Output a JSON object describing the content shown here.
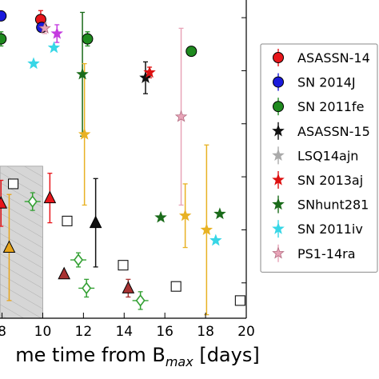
{
  "chart_data": {
    "type": "scatter",
    "xlabel": "me time from B",
    "xlabel_subscript": "max",
    "xlabel_suffix": " [days]",
    "xlim": [
      7.9,
      20
    ],
    "xticks": [
      8,
      10,
      12,
      14,
      16,
      18,
      20
    ],
    "xtick_labels": [
      "8",
      "10",
      "12",
      "14",
      "16",
      "18",
      "20"
    ],
    "grid": false,
    "shaded_region": {
      "x": [
        7.9,
        10
      ],
      "style": "gray hatched"
    },
    "legend_position": "right",
    "series": [
      {
        "name": "ASASSN-14",
        "marker": "circle",
        "color": "#e8161b",
        "points": [
          {
            "x": 9.9,
            "y": 8.9,
            "err": 0.5
          }
        ]
      },
      {
        "name": "SN 2014J",
        "marker": "circle",
        "color": "#1a1adc",
        "points": [
          {
            "x": 7.95,
            "y": 9.1
          },
          {
            "x": 9.95,
            "y": 8.45
          }
        ]
      },
      {
        "name": "SN 2011fe",
        "marker": "circle",
        "color": "#1f8a1f",
        "points": [
          {
            "x": 7.95,
            "y": 7.8,
            "err": 0.4
          },
          {
            "x": 12.2,
            "y": 7.8,
            "err": 0.4
          },
          {
            "x": 17.3,
            "y": 7.1
          }
        ]
      },
      {
        "name": "ASASSN-15",
        "marker": "star",
        "color": "#111111",
        "points": [
          {
            "x": 15.05,
            "y": 5.6,
            "err": 0.9
          }
        ]
      },
      {
        "name": "LSQ14ajn",
        "marker": "star",
        "color": "#aaaaaa",
        "points": []
      },
      {
        "name": "SN 2013aj",
        "marker": "star",
        "color": "#dd1111",
        "points": [
          {
            "x": 15.25,
            "y": 5.9,
            "err": 0.3
          }
        ]
      },
      {
        "name": "SNhunt281",
        "marker": "star",
        "color": "#1a6b1a",
        "points": [
          {
            "x": 11.95,
            "y": 5.8,
            "err": 3.5
          },
          {
            "x": 15.8,
            "y": -2.3
          },
          {
            "x": 18.7,
            "y": -2.1
          }
        ]
      },
      {
        "name": "SN 2011iv",
        "marker": "star",
        "color": "#37d6e6",
        "points": [
          {
            "x": 9.55,
            "y": 6.4
          },
          {
            "x": 10.55,
            "y": 7.3
          },
          {
            "x": 18.5,
            "y": -3.6
          }
        ]
      },
      {
        "name": "PS1-14ra",
        "marker": "star",
        "color": "#e8a4b8",
        "points": [
          {
            "x": 10.1,
            "y": 8.4,
            "err": 0.3
          },
          {
            "x": 16.8,
            "y": 3.4,
            "err": 5.0
          }
        ]
      },
      {
        "name": "",
        "marker": "star",
        "color": "#e8b224",
        "points": [
          {
            "x": 12.05,
            "y": 2.4,
            "err": 4.0
          },
          {
            "x": 17.0,
            "y": -2.2,
            "err": 1.8
          },
          {
            "x": 18.05,
            "y": -3.0,
            "err": 4.8
          }
        ]
      },
      {
        "name": "",
        "marker": "star",
        "color": "#c43adf",
        "points": [
          {
            "x": 10.7,
            "y": 8.1,
            "err": 0.5
          }
        ]
      },
      {
        "name": "",
        "marker": "triangle",
        "color": "#e8161b",
        "points": [
          {
            "x": 7.95,
            "y": -1.5,
            "err": 1.3
          },
          {
            "x": 10.35,
            "y": -1.2,
            "err": 1.4
          }
        ]
      },
      {
        "name": "",
        "marker": "triangle",
        "color": "#a83232",
        "points": [
          {
            "x": 11.05,
            "y": -5.5
          },
          {
            "x": 14.2,
            "y": -6.3,
            "err": 0.5
          }
        ]
      },
      {
        "name": "",
        "marker": "triangle",
        "color": "#e8a41a",
        "points": [
          {
            "x": 8.35,
            "y": -4.0,
            "err": 3.0
          }
        ]
      },
      {
        "name": "",
        "marker": "triangle",
        "color": "#111111",
        "points": [
          {
            "x": 12.6,
            "y": -2.6,
            "err": 2.5
          }
        ]
      },
      {
        "name": "",
        "marker": "diamond",
        "color": "#33a033",
        "points": [
          {
            "x": 9.5,
            "y": -1.4,
            "err": 0.5
          },
          {
            "x": 11.75,
            "y": -4.7,
            "err": 0.4
          },
          {
            "x": 12.15,
            "y": -6.3,
            "err": 0.5
          },
          {
            "x": 14.8,
            "y": -7.0,
            "err": 0.5
          }
        ]
      },
      {
        "name": "",
        "marker": "square",
        "color": "#111111",
        "points": [
          {
            "x": 8.55,
            "y": -0.4
          },
          {
            "x": 11.2,
            "y": -2.5
          },
          {
            "x": 13.95,
            "y": -5.0
          },
          {
            "x": 16.55,
            "y": -6.2
          },
          {
            "x": 19.7,
            "y": -7.0
          }
        ]
      }
    ]
  }
}
